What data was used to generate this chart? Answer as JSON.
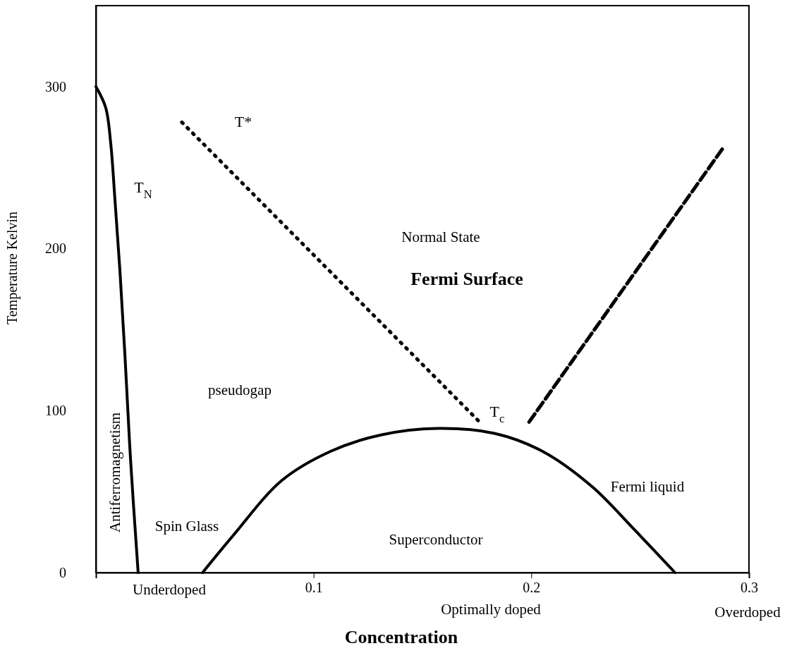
{
  "chart_data": {
    "type": "line",
    "xlabel": "Concentration",
    "ylabel": "Temperature Kelvin",
    "xlim": [
      0,
      0.3
    ],
    "ylim": [
      0,
      350
    ],
    "xticks": [
      0.1,
      0.2,
      0.3
    ],
    "yticks": [
      0,
      100,
      200,
      300
    ],
    "marker": "none",
    "series": [
      {
        "name": "T$_{N}$",
        "color": "#000000",
        "line_style": "solid",
        "x": [
          0,
          0.0045,
          0.0068,
          0.0087,
          0.011,
          0.0133,
          0.0159,
          0.0194
        ],
        "values": [
          300,
          287,
          265,
          231,
          187,
          135,
          70,
          0
        ]
      },
      {
        "name": "T*",
        "color": "#000000",
        "line_style": "dotted",
        "x": [
          0.0395,
          0.177
        ],
        "values": [
          278,
          92
        ]
      },
      {
        "color": "#000000",
        "line_style": "dashed",
        "x": [
          0.199,
          0.288
        ],
        "values": [
          93,
          262
        ]
      },
      {
        "name": "T$_{c}$",
        "color": "#000000",
        "line_style": "solid",
        "x": [
          0.049,
          0.0628,
          0.0855,
          0.108,
          0.131,
          0.157,
          0.183,
          0.205,
          0.228,
          0.247,
          0.266
        ],
        "values": [
          0,
          22.5,
          57,
          75,
          85,
          89,
          86,
          75,
          53,
          27,
          0
        ]
      }
    ],
    "annotations": [
      "Antiferromagnetism",
      "Normal State",
      "Fermi Surface",
      "pseudogap",
      "Spin Glass",
      "Superconductor",
      "Fermi liquid",
      "Underdoped",
      "Optimally doped",
      "Overdoped"
    ]
  }
}
